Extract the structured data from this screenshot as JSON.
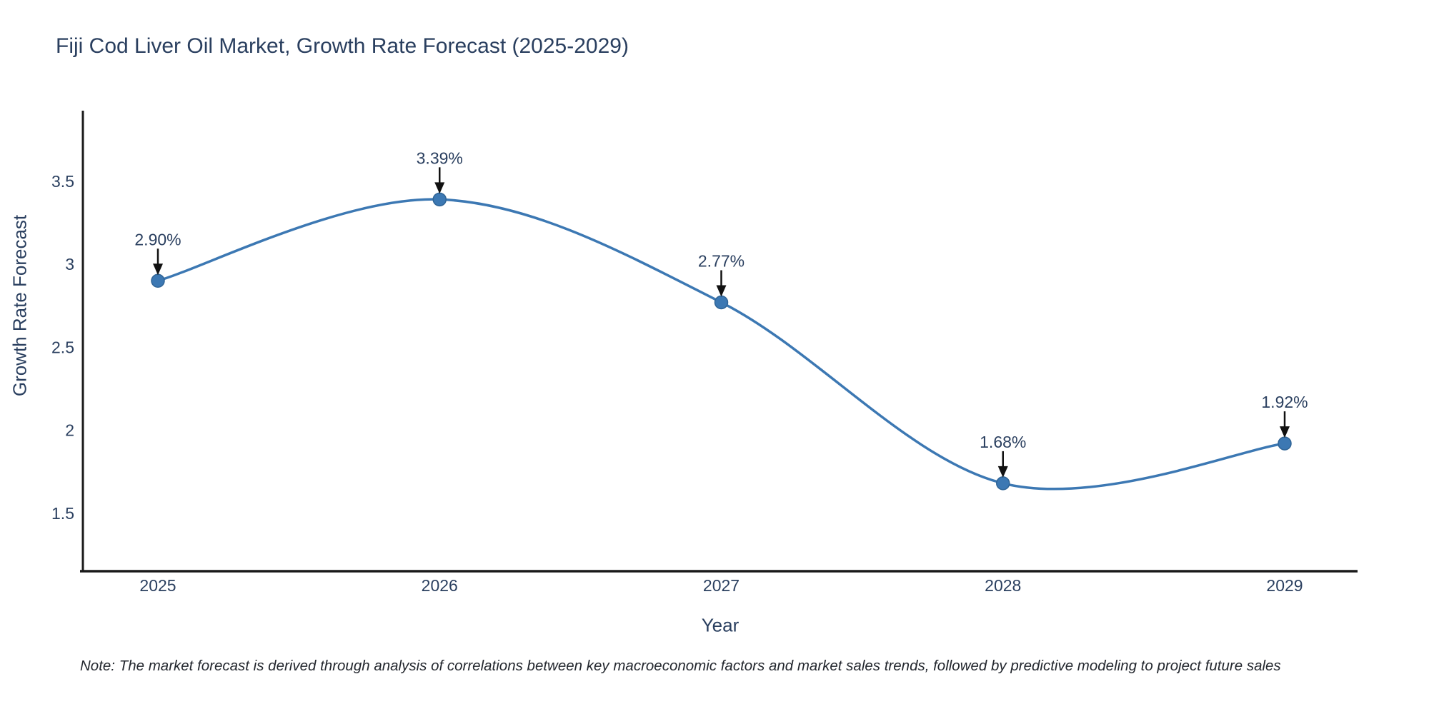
{
  "title": {
    "text": "Fiji Cod Liver Oil Market, Growth Rate Forecast (2025-2029)",
    "color": "#2a3f5f"
  },
  "chart_data": {
    "type": "line",
    "title": "Fiji Cod Liver Oil Market, Growth Rate Forecast (2025-2029)",
    "xlabel": "Year",
    "ylabel": "Growth Rate Forecast",
    "x": [
      2025,
      2026,
      2027,
      2028,
      2029
    ],
    "x_tick_labels": [
      "2025",
      "2026",
      "2027",
      "2028",
      "2029"
    ],
    "series": [
      {
        "name": "Growth Rate Forecast",
        "values": [
          2.9,
          3.39,
          2.77,
          1.68,
          1.92
        ]
      }
    ],
    "point_labels": [
      "2.90%",
      "3.39%",
      "2.77%",
      "1.68%",
      "1.92%"
    ],
    "y_ticks": [
      3.5,
      3,
      2.5,
      2,
      1.5
    ],
    "y_tick_labels": [
      "3.5",
      "3",
      "2.5",
      "2",
      "1.5"
    ],
    "xlim": [
      2024.73,
      2029.26
    ],
    "ylim": [
      1.15,
      3.93
    ],
    "grid": false,
    "legend_visible": false,
    "line_shape": "spline",
    "line_color": "#3c78b3",
    "marker_color": "#3c78b3",
    "marker_edge_color": "#2f6496",
    "axis_line_color": "#1a1a1a",
    "tick_label_color": "#2a3f5f",
    "annotation_color": "#2a3f5f",
    "arrow_color": "#111111",
    "note": "Note: The market forecast is derived through analysis of correlations between key macroeconomic factors and market sales trends, followed by predictive modeling to project future sales"
  }
}
